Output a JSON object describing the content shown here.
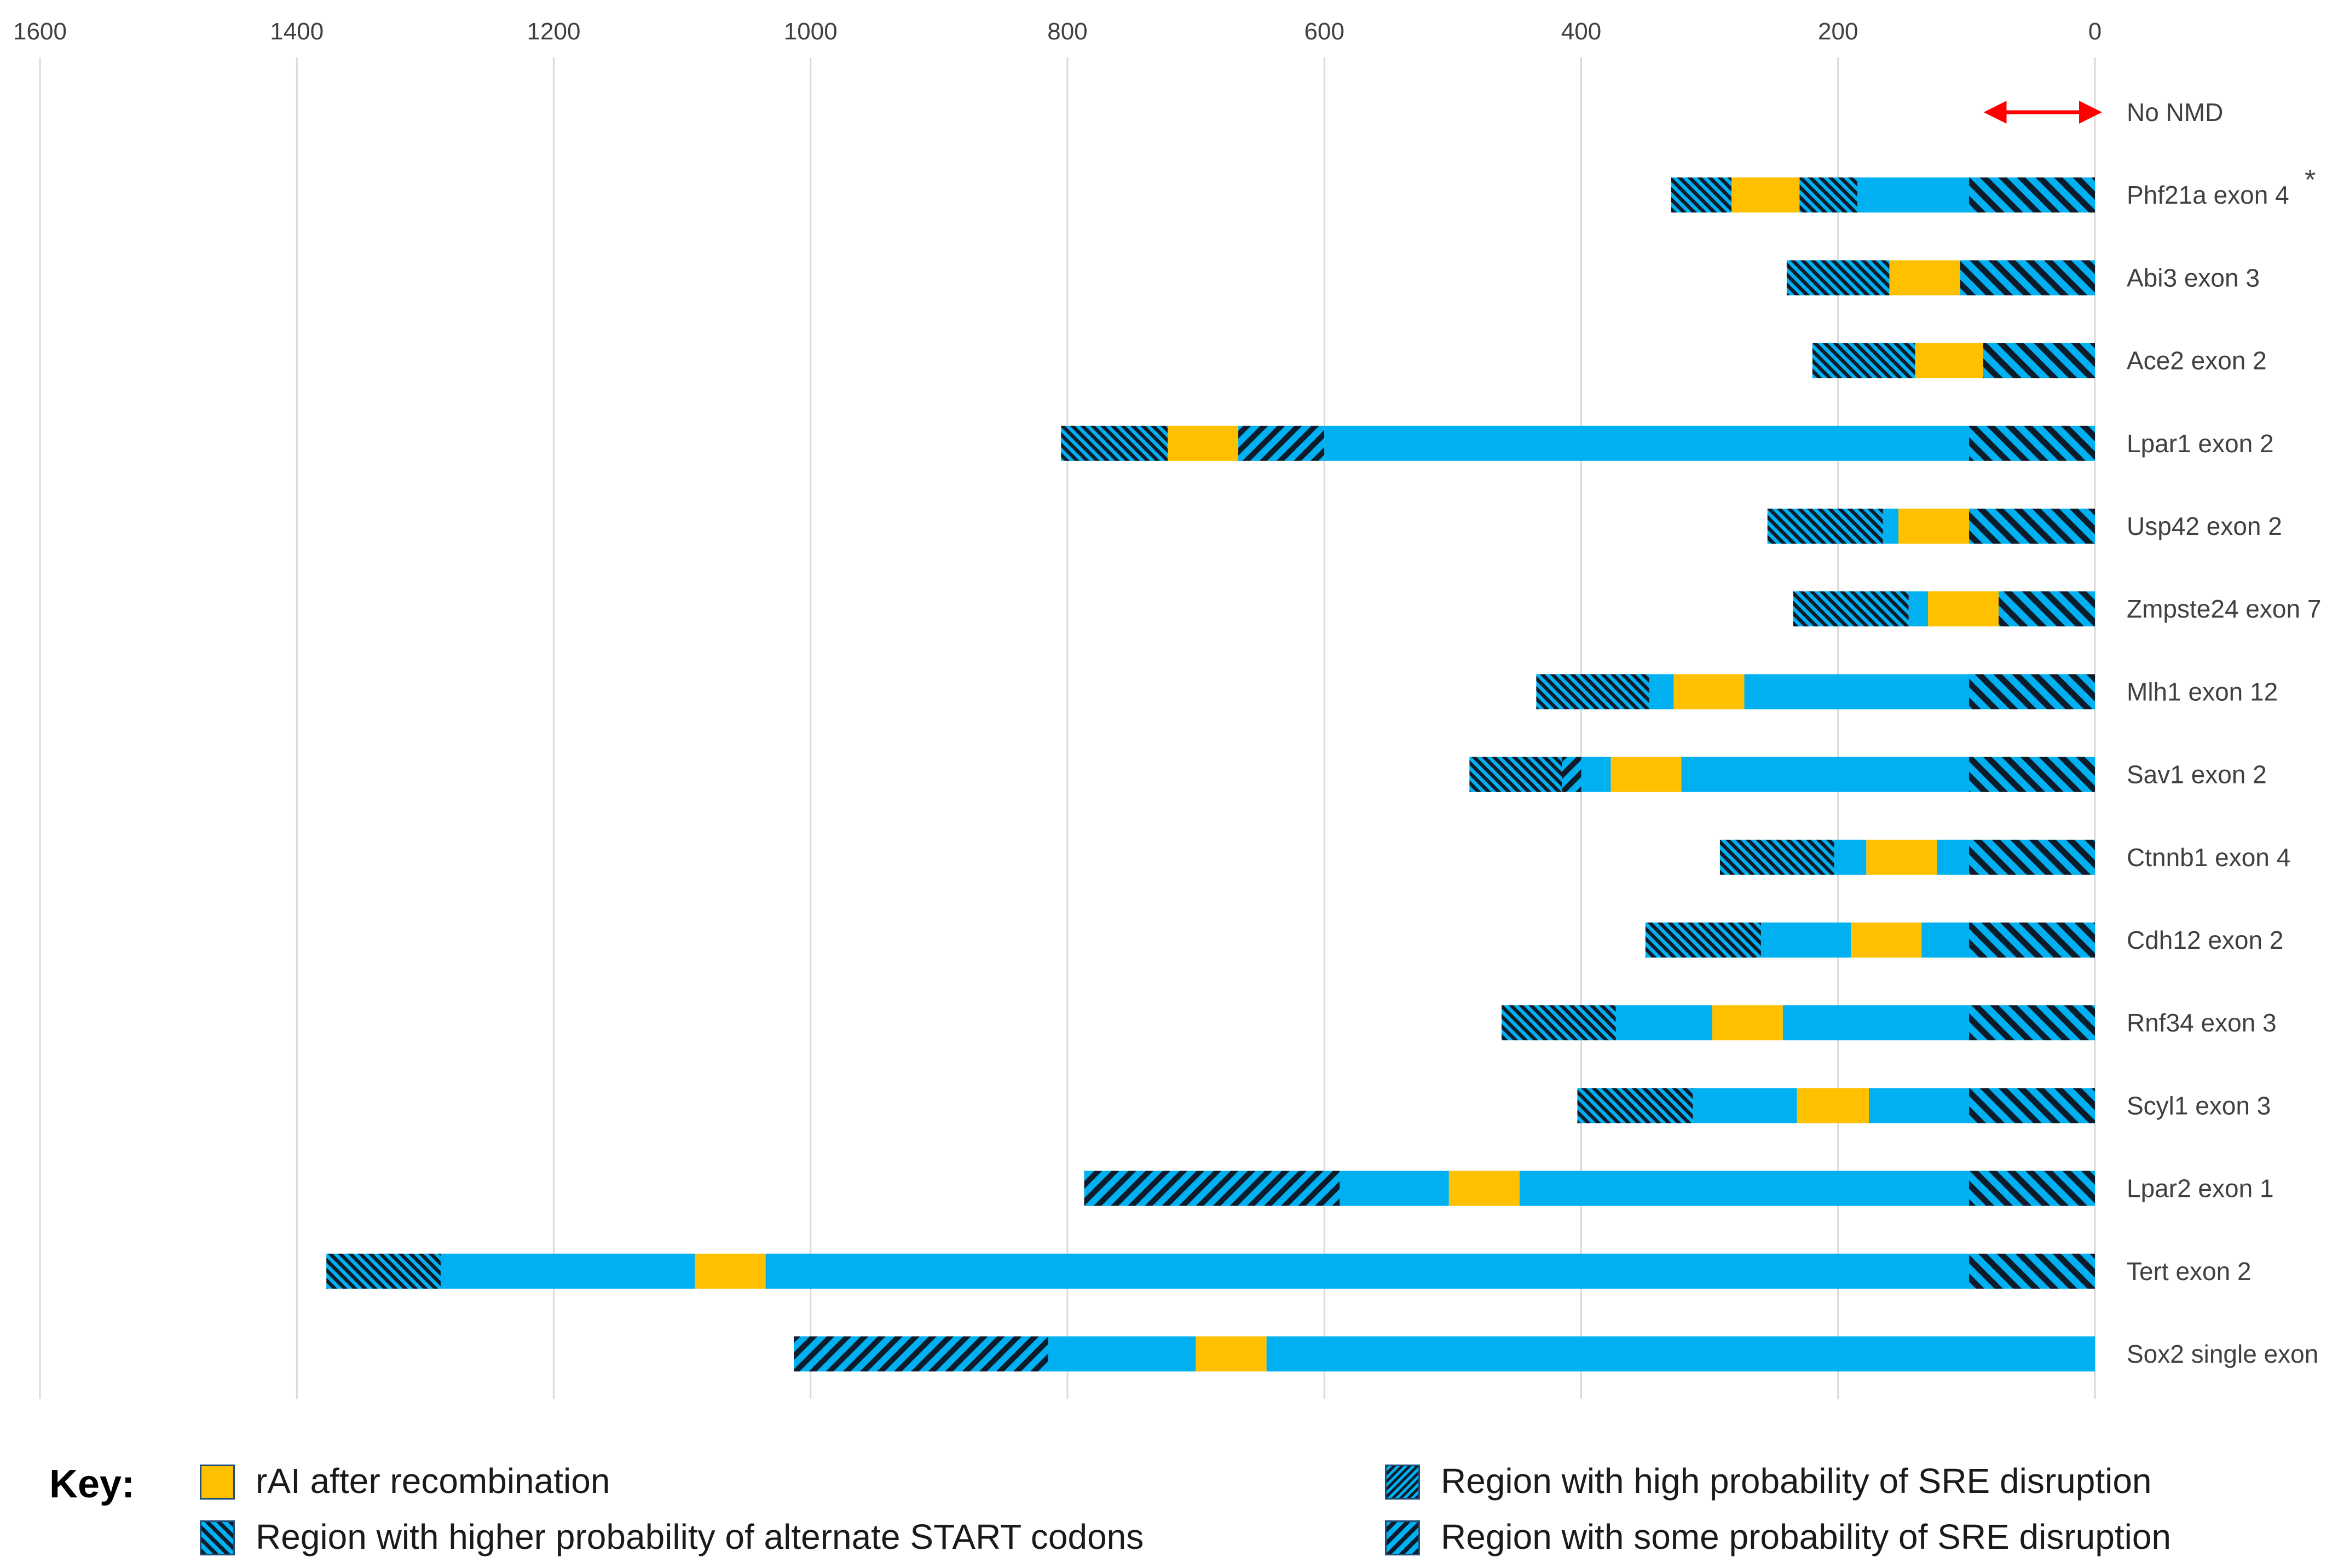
{
  "chart_data": {
    "type": "bar",
    "orientation": "horizontal",
    "x_axis_direction": "reversed",
    "xlim": [
      0,
      1600
    ],
    "x_ticks": [
      "1600",
      "1400",
      "1200",
      "1000",
      "800",
      "600",
      "400",
      "200",
      "0"
    ],
    "grid": true,
    "categories": [
      "No NMD",
      "Phf21a exon 4",
      "Abi3 exon 3",
      "Ace2 exon 2",
      "Lpar1 exon 2",
      "Usp42 exon 2",
      "Zmpste24 exon 7",
      "Mlh1 exon 12",
      "Sav1 exon 2",
      "Ctnnb1 exon 4",
      "Cdh12 exon 2",
      "Rnf34 exon 3",
      "Scyl1 exon 3",
      "Lpar2 exon 1",
      "Tert exon 2",
      "Sox2 single exon"
    ],
    "annotations": [
      {
        "category": "Phf21a exon 4",
        "text": "*"
      }
    ],
    "no_nmd_range": [
      0,
      50
    ],
    "rows": [
      {
        "label": "Phf21a exon 4",
        "segments": [
          {
            "from": 330,
            "to": 283,
            "kind": "sre_high"
          },
          {
            "from": 283,
            "to": 230,
            "kind": "rai"
          },
          {
            "from": 230,
            "to": 185,
            "kind": "sre_high"
          },
          {
            "from": 185,
            "to": 98,
            "kind": "plain"
          },
          {
            "from": 98,
            "to": 0,
            "kind": "sre_some"
          }
        ]
      },
      {
        "label": "Abi3 exon 3",
        "segments": [
          {
            "from": 240,
            "to": 160,
            "kind": "sre_high"
          },
          {
            "from": 160,
            "to": 105,
            "kind": "rai"
          },
          {
            "from": 105,
            "to": 0,
            "kind": "sre_some"
          }
        ]
      },
      {
        "label": "Ace2 exon 2",
        "segments": [
          {
            "from": 220,
            "to": 140,
            "kind": "sre_high"
          },
          {
            "from": 140,
            "to": 87,
            "kind": "rai"
          },
          {
            "from": 87,
            "to": 0,
            "kind": "sre_some"
          }
        ]
      },
      {
        "label": "Lpar1 exon 2",
        "segments": [
          {
            "from": 805,
            "to": 722,
            "kind": "sre_high"
          },
          {
            "from": 722,
            "to": 667,
            "kind": "rai"
          },
          {
            "from": 667,
            "to": 600,
            "kind": "start"
          },
          {
            "from": 600,
            "to": 98,
            "kind": "plain"
          },
          {
            "from": 98,
            "to": 0,
            "kind": "sre_some"
          }
        ]
      },
      {
        "label": "Usp42 exon 2",
        "segments": [
          {
            "from": 255,
            "to": 165,
            "kind": "sre_high"
          },
          {
            "from": 165,
            "to": 153,
            "kind": "plain"
          },
          {
            "from": 153,
            "to": 98,
            "kind": "rai"
          },
          {
            "from": 98,
            "to": 0,
            "kind": "sre_some"
          }
        ]
      },
      {
        "label": "Zmpste24 exon 7",
        "segments": [
          {
            "from": 235,
            "to": 145,
            "kind": "sre_high"
          },
          {
            "from": 145,
            "to": 130,
            "kind": "plain"
          },
          {
            "from": 130,
            "to": 75,
            "kind": "rai"
          },
          {
            "from": 75,
            "to": 0,
            "kind": "sre_some"
          }
        ]
      },
      {
        "label": "Mlh1 exon 12",
        "segments": [
          {
            "from": 435,
            "to": 347,
            "kind": "sre_high"
          },
          {
            "from": 347,
            "to": 328,
            "kind": "plain"
          },
          {
            "from": 328,
            "to": 273,
            "kind": "rai"
          },
          {
            "from": 273,
            "to": 98,
            "kind": "plain"
          },
          {
            "from": 98,
            "to": 0,
            "kind": "sre_some"
          }
        ]
      },
      {
        "label": "Sav1 exon 2",
        "segments": [
          {
            "from": 487,
            "to": 415,
            "kind": "sre_high"
          },
          {
            "from": 415,
            "to": 400,
            "kind": "start"
          },
          {
            "from": 400,
            "to": 377,
            "kind": "plain"
          },
          {
            "from": 377,
            "to": 322,
            "kind": "rai"
          },
          {
            "from": 322,
            "to": 98,
            "kind": "plain"
          },
          {
            "from": 98,
            "to": 0,
            "kind": "sre_some"
          }
        ]
      },
      {
        "label": "Ctnnb1 exon 4",
        "segments": [
          {
            "from": 292,
            "to": 203,
            "kind": "sre_high"
          },
          {
            "from": 203,
            "to": 178,
            "kind": "plain"
          },
          {
            "from": 178,
            "to": 123,
            "kind": "rai"
          },
          {
            "from": 123,
            "to": 98,
            "kind": "plain"
          },
          {
            "from": 98,
            "to": 0,
            "kind": "sre_some"
          }
        ]
      },
      {
        "label": "Cdh12 exon 2",
        "segments": [
          {
            "from": 350,
            "to": 260,
            "kind": "sre_high"
          },
          {
            "from": 260,
            "to": 190,
            "kind": "plain"
          },
          {
            "from": 190,
            "to": 135,
            "kind": "rai"
          },
          {
            "from": 135,
            "to": 98,
            "kind": "plain"
          },
          {
            "from": 98,
            "to": 0,
            "kind": "sre_some"
          }
        ]
      },
      {
        "label": "Rnf34 exon 3",
        "segments": [
          {
            "from": 462,
            "to": 373,
            "kind": "sre_high"
          },
          {
            "from": 373,
            "to": 298,
            "kind": "plain"
          },
          {
            "from": 298,
            "to": 243,
            "kind": "rai"
          },
          {
            "from": 243,
            "to": 98,
            "kind": "plain"
          },
          {
            "from": 98,
            "to": 0,
            "kind": "sre_some"
          }
        ]
      },
      {
        "label": "Scyl1 exon 3",
        "segments": [
          {
            "from": 403,
            "to": 313,
            "kind": "sre_high"
          },
          {
            "from": 313,
            "to": 232,
            "kind": "plain"
          },
          {
            "from": 232,
            "to": 176,
            "kind": "rai"
          },
          {
            "from": 176,
            "to": 98,
            "kind": "plain"
          },
          {
            "from": 98,
            "to": 0,
            "kind": "sre_some"
          }
        ]
      },
      {
        "label": "Lpar2 exon 1",
        "segments": [
          {
            "from": 787,
            "to": 588,
            "kind": "start"
          },
          {
            "from": 588,
            "to": 503,
            "kind": "plain"
          },
          {
            "from": 503,
            "to": 448,
            "kind": "rai"
          },
          {
            "from": 448,
            "to": 98,
            "kind": "plain"
          },
          {
            "from": 98,
            "to": 0,
            "kind": "sre_some"
          }
        ]
      },
      {
        "label": "Tert exon 2",
        "segments": [
          {
            "from": 1377,
            "to": 1288,
            "kind": "sre_high"
          },
          {
            "from": 1288,
            "to": 1090,
            "kind": "plain"
          },
          {
            "from": 1090,
            "to": 1035,
            "kind": "rai"
          },
          {
            "from": 1035,
            "to": 98,
            "kind": "plain"
          },
          {
            "from": 98,
            "to": 0,
            "kind": "sre_some"
          }
        ]
      },
      {
        "label": "Sox2 single exon",
        "segments": [
          {
            "from": 1013,
            "to": 815,
            "kind": "start"
          },
          {
            "from": 815,
            "to": 700,
            "kind": "plain"
          },
          {
            "from": 700,
            "to": 645,
            "kind": "rai"
          },
          {
            "from": 645,
            "to": 0,
            "kind": "plain"
          }
        ]
      }
    ],
    "colors": {
      "plain": "#00b0f0",
      "rai": "#ffc000",
      "hatch_line": "#0d1b2a",
      "arrow": "#ff0000",
      "grid": "#d9d9d9",
      "tick_label": "#404040",
      "category_label": "#404040"
    }
  },
  "key": {
    "title": "Key:",
    "items": [
      {
        "kind": "rai",
        "label": "rAI after recombination"
      },
      {
        "kind": "start",
        "label": "Region with higher probability of alternate START codons"
      },
      {
        "kind": "sre_high",
        "label": "Region with high probability of SRE disruption"
      },
      {
        "kind": "sre_some",
        "label": "Region with some probability of SRE disruption"
      }
    ]
  }
}
